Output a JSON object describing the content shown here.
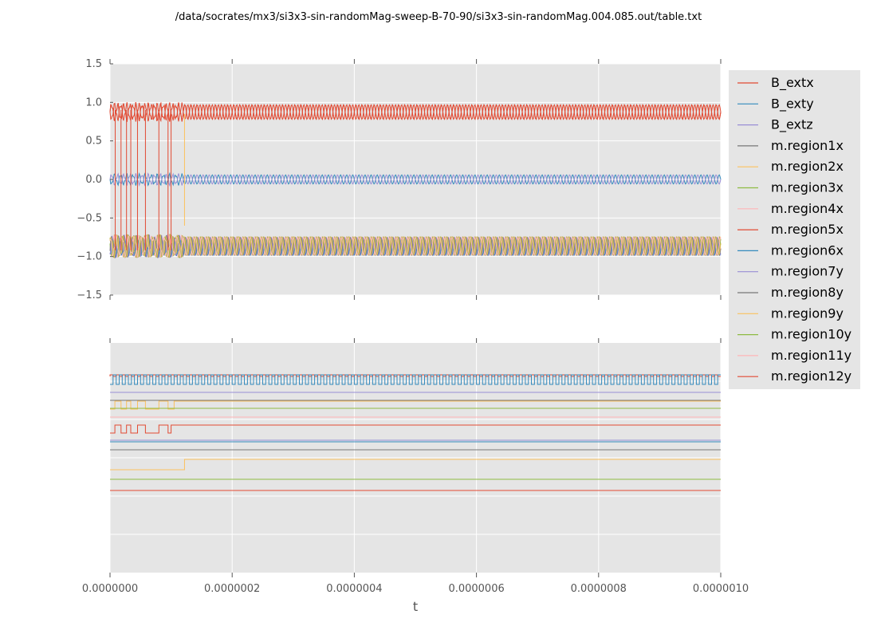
{
  "chart_data": [
    {
      "type": "line",
      "title": "/data/socrates/mx3/si3x3-sin-randomMag-sweep-B-70-90/si3x3-sin-randomMag.004.085.out/table.txt",
      "xlabel": "",
      "ylabel": "",
      "xlim": [
        0,
        1e-06
      ],
      "ylim": [
        -1.5,
        1.5
      ],
      "yticks": [
        "1.5",
        "1.0",
        "0.5",
        "0.0",
        "−0.5",
        "−1.0",
        "−1.5"
      ],
      "ytick_values": [
        1.5,
        1.0,
        0.5,
        0.0,
        -0.5,
        -1.0,
        -1.5
      ],
      "grid": true,
      "legend_position": "right",
      "series": [
        {
          "name": "B_extx",
          "color": "#e24a33",
          "band": [
            0.78,
            0.97
          ],
          "form": "oscillation"
        },
        {
          "name": "B_exty",
          "color": "#348abd",
          "band": [
            -0.06,
            0.06
          ],
          "form": "oscillation"
        },
        {
          "name": "B_extz",
          "color": "#988ed5",
          "band": [
            -0.06,
            0.06
          ],
          "form": "oscillation"
        },
        {
          "name": "m.region1x",
          "color": "#777777",
          "band": [
            -0.98,
            -0.75
          ],
          "form": "oscillation"
        },
        {
          "name": "m.region2x",
          "color": "#fbc15e",
          "band": [
            -0.98,
            -0.75
          ],
          "form": "oscillation"
        },
        {
          "name": "m.region3x",
          "color": "#8eba42",
          "band": [
            -0.98,
            -0.75
          ],
          "form": "oscillation"
        },
        {
          "name": "m.region4x",
          "color": "#ffb5b8",
          "band": [
            -0.98,
            -0.75
          ],
          "form": "oscillation"
        },
        {
          "name": "m.region5x",
          "color": "#e24a33",
          "band": [
            0.78,
            0.97
          ],
          "form": "oscillation"
        },
        {
          "name": "m.region6x",
          "color": "#348abd",
          "band": [
            -0.98,
            -0.8
          ],
          "form": "oscillation"
        },
        {
          "name": "m.region7y",
          "color": "#988ed5",
          "band": [
            -0.98,
            -0.75
          ],
          "form": "oscillation"
        },
        {
          "name": "m.region8y",
          "color": "#777777",
          "band": [
            -0.98,
            -0.75
          ],
          "form": "oscillation"
        },
        {
          "name": "m.region9y",
          "color": "#fbc15e",
          "band": [
            -0.98,
            -0.75
          ],
          "form": "oscillation"
        },
        {
          "name": "m.region10y",
          "color": "#8eba42",
          "band": [
            -0.98,
            -0.75
          ],
          "form": "oscillation"
        },
        {
          "name": "m.region11y",
          "color": "#ffb5b8",
          "band": [
            -0.98,
            -0.75
          ],
          "form": "oscillation"
        },
        {
          "name": "m.region12y",
          "color": "#e24a33",
          "band": [
            0.78,
            0.97
          ],
          "form": "oscillation"
        }
      ]
    },
    {
      "type": "line",
      "title": "",
      "xlabel": "t",
      "ylabel": "",
      "xlim": [
        0,
        1e-06
      ],
      "xticks": [
        "0.0000000",
        "0.0000002",
        "0.0000004",
        "0.0000006",
        "0.0000008",
        "0.0000010"
      ],
      "xtick_values": [
        0,
        2e-07,
        4e-07,
        6e-07,
        8e-07,
        1e-06
      ],
      "grid": true,
      "yticks_visible": false,
      "traces": [
        {
          "color": "#e24a33",
          "form": "square",
          "levels": [
            12,
            10
          ]
        },
        {
          "color": "#348abd",
          "form": "square",
          "levels": [
            22,
            10
          ]
        },
        {
          "color": "#988ed5",
          "form": "flat",
          "levels": [
            32
          ]
        },
        {
          "color": "#777777",
          "form": "flat",
          "levels": [
            42
          ]
        },
        {
          "color": "#fbc15e",
          "form": "early-square",
          "levels": [
            53,
            43
          ],
          "until": 1.05e-07
        },
        {
          "color": "#8eba42",
          "form": "flat",
          "levels": [
            52
          ]
        },
        {
          "color": "#ffb5b8",
          "form": "flat",
          "levels": [
            63
          ]
        },
        {
          "color": "#e24a33",
          "form": "early-square",
          "levels": [
            83,
            73
          ],
          "until": 1e-07
        },
        {
          "color": "#988ed5",
          "form": "flat",
          "levels": [
            92
          ]
        },
        {
          "color": "#348abd",
          "form": "flat",
          "levels": [
            94
          ]
        },
        {
          "color": "#777777",
          "form": "flat",
          "levels": [
            104
          ]
        },
        {
          "color": "#fbc15e",
          "form": "step",
          "levels": [
            129,
            116
          ],
          "at": 1.22e-07
        },
        {
          "color": "#8eba42",
          "form": "flat",
          "levels": [
            141
          ]
        },
        {
          "color": "#e24a33",
          "form": "flat",
          "levels": [
            155
          ]
        }
      ]
    }
  ]
}
